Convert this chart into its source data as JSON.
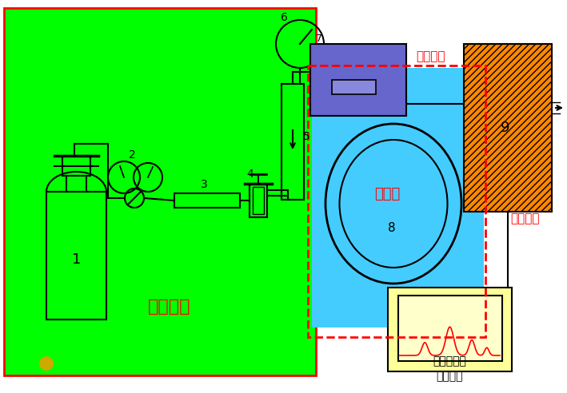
{
  "fig_width": 7.09,
  "fig_height": 4.92,
  "dpi": 100,
  "bg_color": "#ffffff",
  "green_bg": "#00ff00",
  "red_border": "#ff0000",
  "cyan_bg": "#44ccff",
  "blue_box": "#6666cc",
  "orange_box": "#ff8800",
  "yellow_box": "#ffff99",
  "label_color": "#ff0000",
  "black": "#000000",
  "gas_label": "气路系统",
  "column_label": "柱系统",
  "inject_label": "进样系统",
  "detect_label": "检测系统",
  "data_label": "数据记录与\n处理系统",
  "num1": "1",
  "num2": "2",
  "num3": "3",
  "num4": "4",
  "num5": "5",
  "num6": "6",
  "num7": "7",
  "num8": "8",
  "num9": "9"
}
